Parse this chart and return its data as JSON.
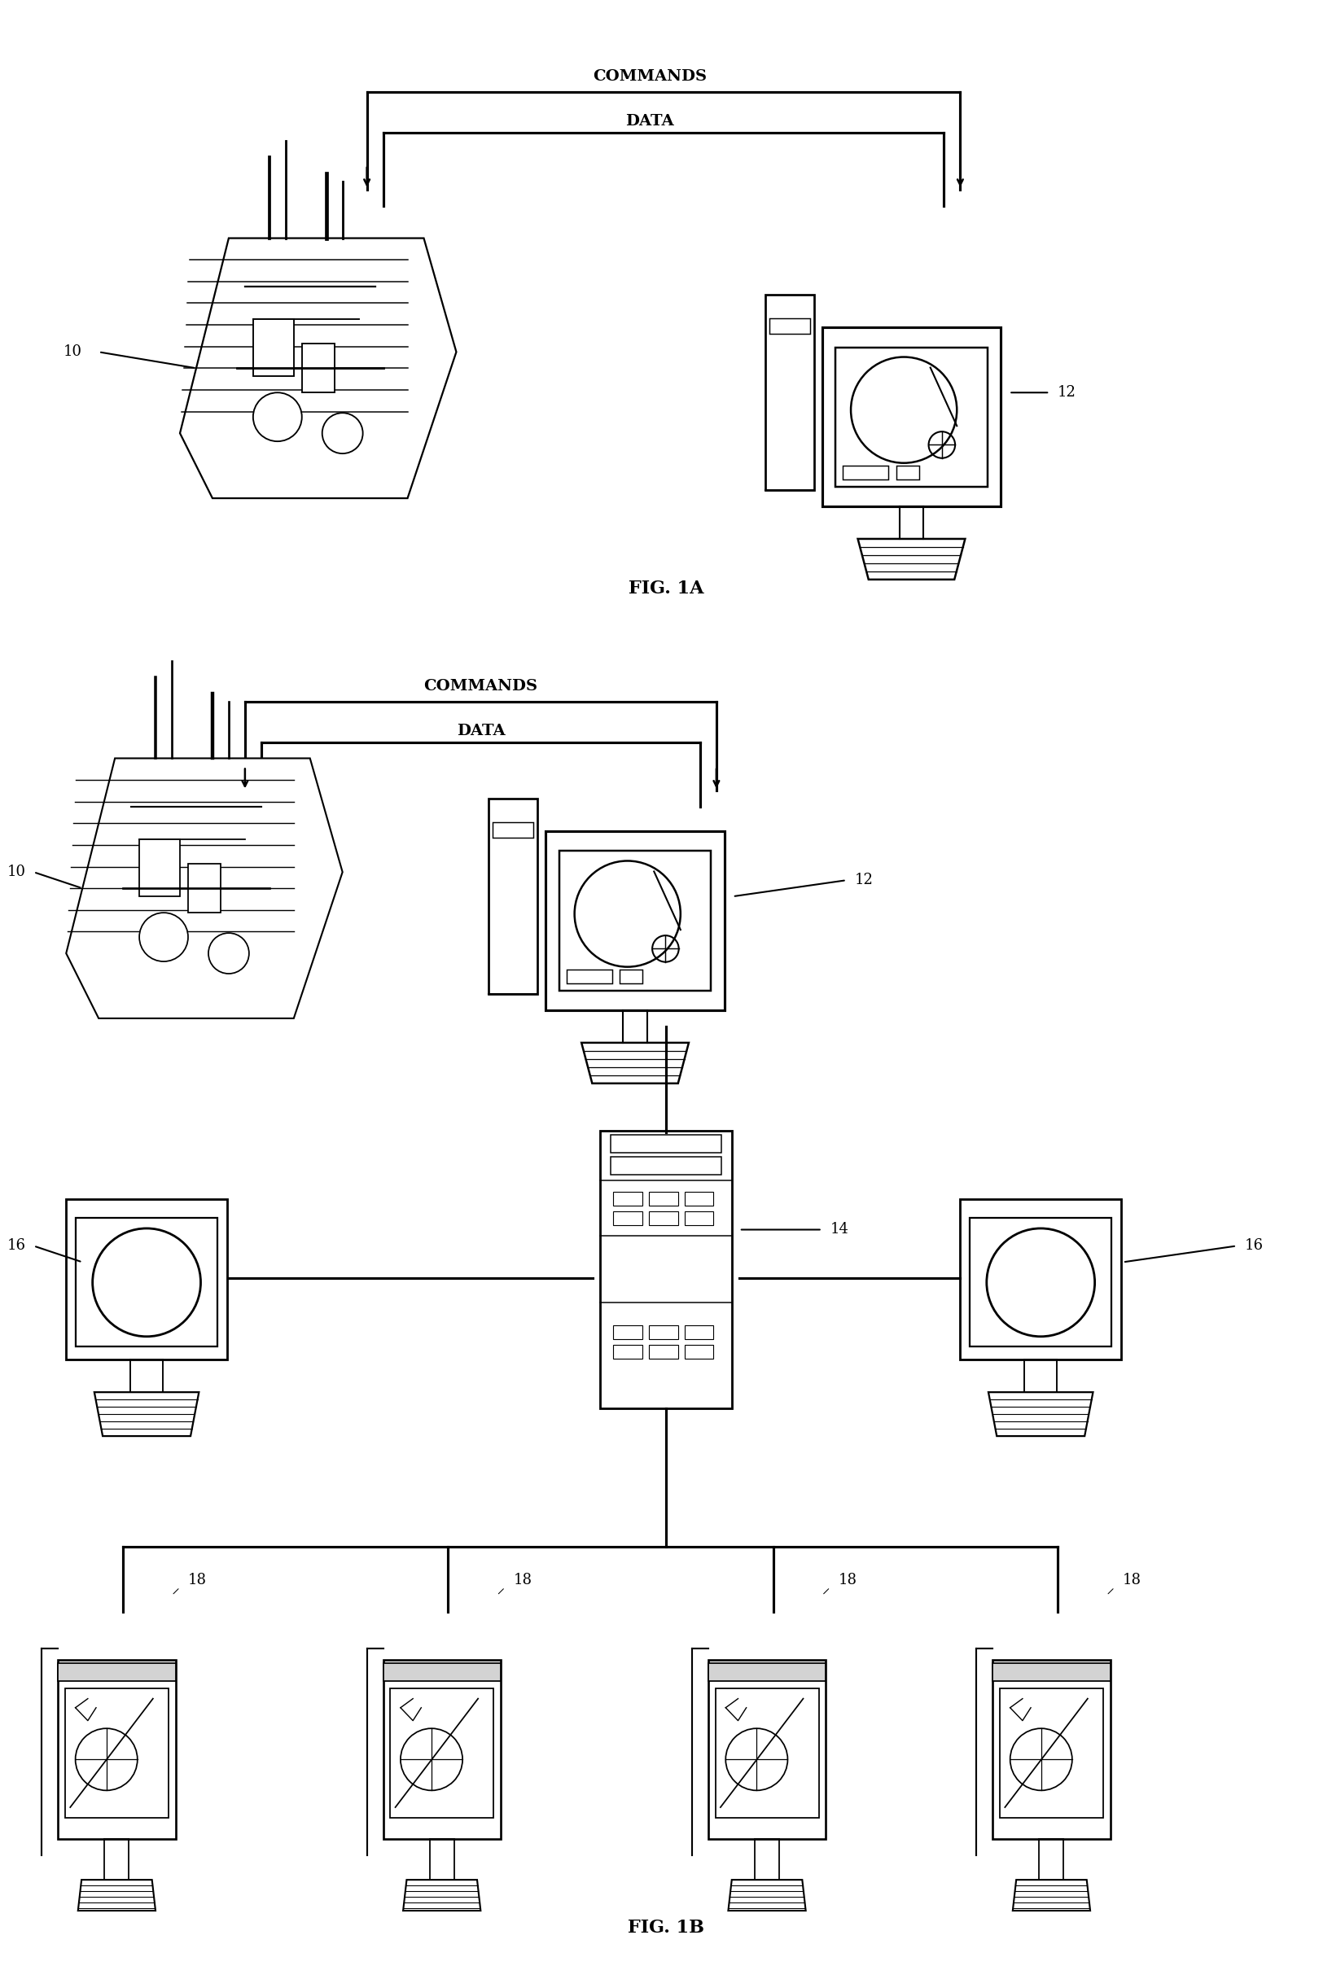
{
  "fig_width": 16.36,
  "fig_height": 24.31,
  "bg_color": "#ffffff",
  "line_color": "#000000",
  "fig1a_label": "FIG. 1A",
  "fig1b_label": "FIG. 1B",
  "commands_label": "COMMANDS",
  "data_label": "DATA",
  "label_10": "10",
  "label_12_1a": "12",
  "label_12_1b": "12",
  "label_14": "14",
  "label_16_left": "16",
  "label_16_right": "16",
  "label_18_1": "18",
  "label_18_2": "18",
  "label_18_3": "18",
  "label_18_4": "18",
  "font_size_label": 13,
  "font_size_caption": 16,
  "font_size_annot": 14
}
